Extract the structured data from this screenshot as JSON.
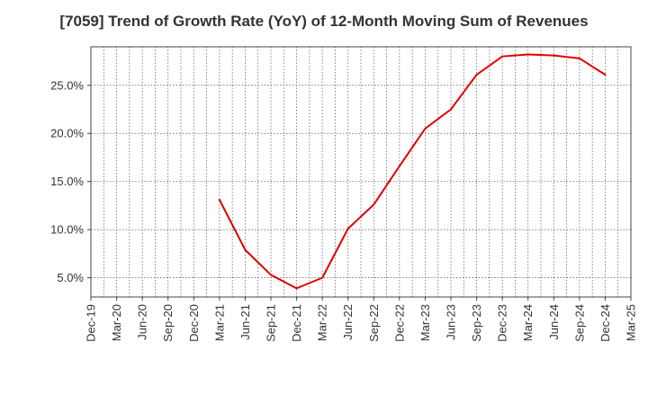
{
  "chart_data": {
    "type": "line",
    "title": "[7059]  Trend of Growth Rate (YoY) of 12-Month Moving Sum of Revenues",
    "xlabel": "",
    "ylabel": "",
    "x_ticks": [
      "Dec-19",
      "Mar-20",
      "Jun-20",
      "Sep-20",
      "Dec-20",
      "Mar-21",
      "Jun-21",
      "Sep-21",
      "Dec-21",
      "Mar-22",
      "Jun-22",
      "Sep-22",
      "Dec-22",
      "Mar-23",
      "Jun-23",
      "Sep-23",
      "Dec-23",
      "Mar-24",
      "Jun-24",
      "Sep-24",
      "Dec-24",
      "Mar-25"
    ],
    "y_ticks": [
      "5.0%",
      "10.0%",
      "15.0%",
      "20.0%",
      "25.0%"
    ],
    "y_tick_values": [
      5,
      10,
      15,
      20,
      25
    ],
    "ylim": [
      3,
      29
    ],
    "grid": true,
    "series": [
      {
        "color": "#e00000",
        "points": [
          {
            "x": "Mar-21",
            "y": 13.1
          },
          {
            "x": "Jun-21",
            "y": 7.9
          },
          {
            "x": "Sep-21",
            "y": 5.3
          },
          {
            "x": "Dec-21",
            "y": 3.9
          },
          {
            "x": "Mar-22",
            "y": 5.0
          },
          {
            "x": "Jun-22",
            "y": 10.1
          },
          {
            "x": "Sep-22",
            "y": 12.6
          },
          {
            "x": "Dec-22",
            "y": 16.6
          },
          {
            "x": "Mar-23",
            "y": 20.5
          },
          {
            "x": "Jun-23",
            "y": 22.5
          },
          {
            "x": "Sep-23",
            "y": 26.1
          },
          {
            "x": "Dec-23",
            "y": 28.0
          },
          {
            "x": "Mar-24",
            "y": 28.2
          },
          {
            "x": "Jun-24",
            "y": 28.1
          },
          {
            "x": "Sep-24",
            "y": 27.8
          },
          {
            "x": "Dec-24",
            "y": 26.1
          }
        ]
      }
    ]
  }
}
